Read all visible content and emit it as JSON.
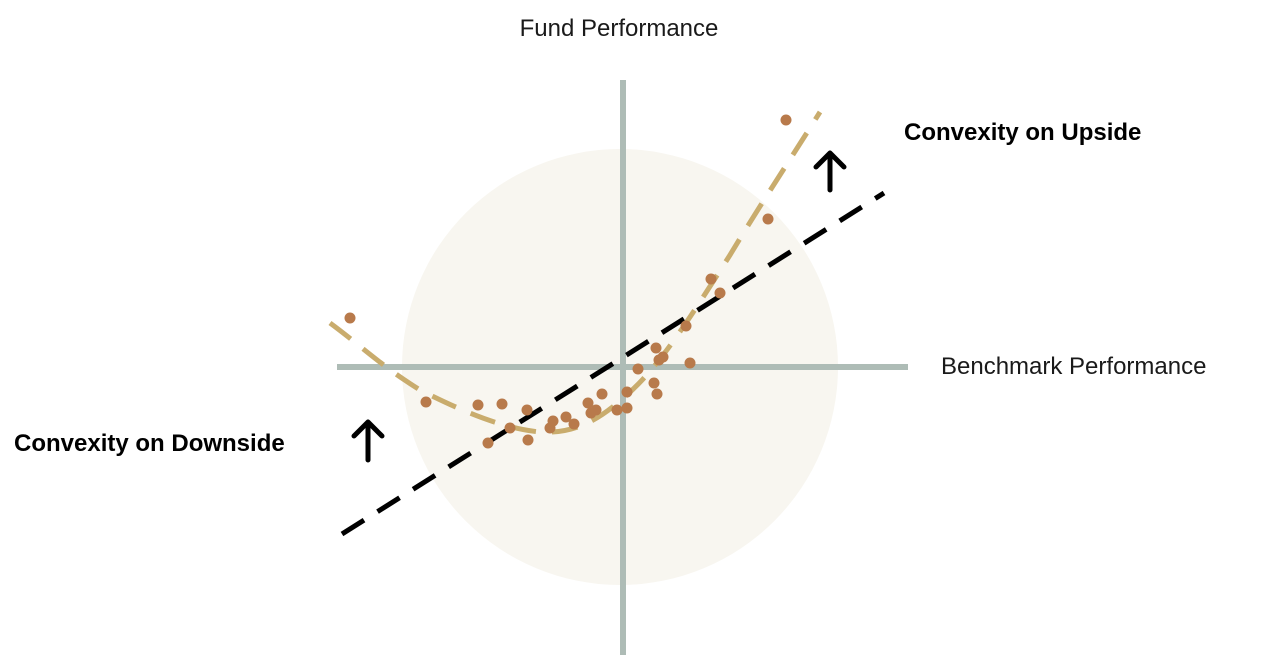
{
  "title": "Fund Performance",
  "x_axis_label": "Benchmark Performance",
  "annotations": [
    "Convexity on Upside",
    "Convexity on Downside"
  ]
}
